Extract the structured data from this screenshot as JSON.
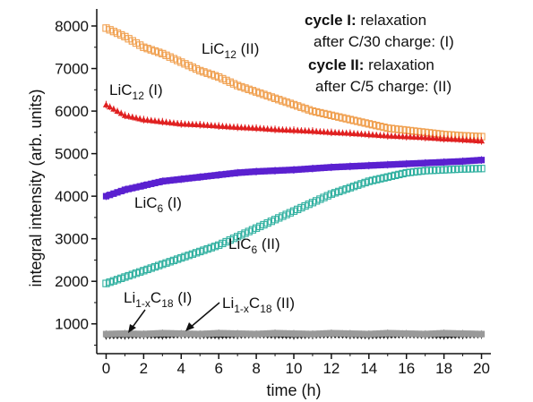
{
  "chart_data": {
    "type": "scatter",
    "xlabel": "time (h)",
    "ylabel": "integral intensity (arb. units)",
    "xlim": [
      -0.5,
      20.5
    ],
    "ylim": [
      300,
      8400
    ],
    "x_ticks": [
      "0",
      "2",
      "4",
      "6",
      "8",
      "10",
      "12",
      "14",
      "16",
      "18",
      "20"
    ],
    "y_ticks": [
      "1000",
      "2000",
      "3000",
      "4000",
      "5000",
      "6000",
      "7000",
      "8000"
    ],
    "grid": false,
    "series": [
      {
        "name": "LiC12 (II)",
        "color": "#f0a050",
        "marker": "square-open",
        "x": [
          0,
          1,
          2,
          3,
          4,
          5,
          6,
          7,
          8,
          9,
          10,
          11,
          12,
          13,
          14,
          15,
          16,
          17,
          18,
          19,
          20
        ],
        "y": [
          7950,
          7750,
          7500,
          7350,
          7150,
          6950,
          6800,
          6600,
          6450,
          6300,
          6150,
          6000,
          5900,
          5800,
          5700,
          5600,
          5550,
          5500,
          5450,
          5420,
          5400
        ]
      },
      {
        "name": "LiC12 (I)",
        "color": "#e02020",
        "marker": "triangle",
        "x": [
          0,
          1,
          2,
          3,
          4,
          5,
          6,
          7,
          8,
          9,
          10,
          11,
          12,
          13,
          14,
          15,
          16,
          17,
          18,
          19,
          20
        ],
        "y": [
          6150,
          5900,
          5800,
          5750,
          5700,
          5680,
          5650,
          5620,
          5600,
          5570,
          5550,
          5530,
          5500,
          5480,
          5450,
          5420,
          5400,
          5380,
          5350,
          5330,
          5300
        ]
      },
      {
        "name": "LiC6 (I)",
        "color": "#5a20d0",
        "marker": "square",
        "x": [
          0,
          1,
          2,
          3,
          4,
          5,
          6,
          7,
          8,
          9,
          10,
          11,
          12,
          13,
          14,
          15,
          16,
          17,
          18,
          19,
          20
        ],
        "y": [
          4000,
          4150,
          4250,
          4350,
          4400,
          4450,
          4500,
          4550,
          4580,
          4600,
          4620,
          4650,
          4680,
          4700,
          4720,
          4740,
          4760,
          4780,
          4800,
          4820,
          4850
        ]
      },
      {
        "name": "LiC6 (II)",
        "color": "#30b0a0",
        "marker": "square-open",
        "x": [
          0,
          1,
          2,
          3,
          4,
          5,
          6,
          7,
          8,
          9,
          10,
          11,
          12,
          13,
          14,
          15,
          16,
          17,
          18,
          19,
          20
        ],
        "y": [
          1950,
          2100,
          2250,
          2400,
          2550,
          2700,
          2850,
          3050,
          3250,
          3450,
          3650,
          3850,
          4050,
          4200,
          4350,
          4450,
          4550,
          4600,
          4620,
          4640,
          4650
        ]
      },
      {
        "name": "Li1-xC18 (I)",
        "color": "#222222",
        "marker": "diamond",
        "x": [
          0,
          1,
          2,
          3,
          4,
          5,
          6,
          7,
          8,
          9,
          10,
          11,
          12,
          13,
          14,
          15,
          16,
          17,
          18,
          19,
          20
        ],
        "y": [
          720,
          720,
          730,
          720,
          740,
          730,
          720,
          730,
          740,
          730,
          720,
          730,
          740,
          730,
          720,
          730,
          740,
          730,
          720,
          730,
          740
        ]
      },
      {
        "name": "Li1-xC18 (II)",
        "color": "#9a9a9a",
        "marker": "square",
        "x": [
          0,
          1,
          2,
          3,
          4,
          5,
          6,
          7,
          8,
          9,
          10,
          11,
          12,
          13,
          14,
          15,
          16,
          17,
          18,
          19,
          20
        ],
        "y": [
          760,
          770,
          760,
          780,
          770,
          760,
          780,
          770,
          760,
          780,
          770,
          760,
          780,
          770,
          760,
          780,
          770,
          760,
          780,
          770,
          760
        ]
      }
    ],
    "annotations": {
      "cycle1_bold": "cycle I:",
      "cycle1_rest": " relaxation",
      "cycle1_line2": "after C/30 charge: (I)",
      "cycle2_bold": "cycle II:",
      "cycle2_rest": " relaxation",
      "cycle2_line2": "after C/5 charge: (II)",
      "lic12_ii_main": "LiC",
      "lic12_ii_sub": "12",
      "lic12_ii_suffix": " (II)",
      "lic12_i_main": "LiC",
      "lic12_i_sub": "12",
      "lic12_i_suffix": " (I)",
      "lic6_i_main": "LiC",
      "lic6_i_sub": "6",
      "lic6_i_suffix": " (I)",
      "lic6_ii_main": "LiC",
      "lic6_ii_sub": "6",
      "lic6_ii_suffix": " (II)",
      "lic18_i_main1": "Li",
      "lic18_i_sub1": "1-x",
      "lic18_i_main2": "C",
      "lic18_i_sub2": "18",
      "lic18_i_suffix": " (I)",
      "lic18_ii_main1": "Li",
      "lic18_ii_sub1": "1-x",
      "lic18_ii_main2": "C",
      "lic18_ii_sub2": "18",
      "lic18_ii_suffix": " (II)"
    }
  }
}
